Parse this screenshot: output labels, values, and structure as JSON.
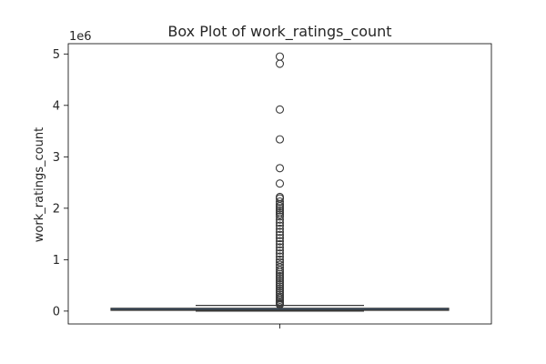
{
  "chart_data": {
    "type": "box",
    "title": "Box Plot of work_ratings_count",
    "xlabel": "",
    "ylabel": "work_ratings_count",
    "y_scale_label": "1e6",
    "ylim": [
      -250000,
      5200000
    ],
    "y_ticks": [
      0,
      1,
      2,
      3,
      4,
      5
    ],
    "y_tick_unit": 1000000,
    "grid": false,
    "box": {
      "q1": 15000,
      "median": 25000,
      "q3": 55000,
      "whisker_low": 0,
      "whisker_high": 110000
    },
    "outliers": [
      4950000,
      4810000,
      3920000,
      3340000,
      2780000,
      2480000,
      2220000,
      2190000,
      2130000,
      2080000,
      2040000,
      2000000,
      1960000,
      1920000,
      1880000,
      1840000,
      1780000,
      1720000,
      1660000,
      1600000,
      1540000,
      1480000,
      1420000,
      1360000,
      1300000,
      1240000,
      1180000,
      1120000,
      1060000,
      1000000,
      950000,
      900000,
      850000,
      800000,
      760000,
      720000,
      680000,
      640000,
      600000,
      560000,
      520000,
      480000,
      440000,
      400000,
      360000,
      320000,
      280000,
      250000,
      220000,
      190000,
      160000,
      140000,
      125000
    ]
  }
}
